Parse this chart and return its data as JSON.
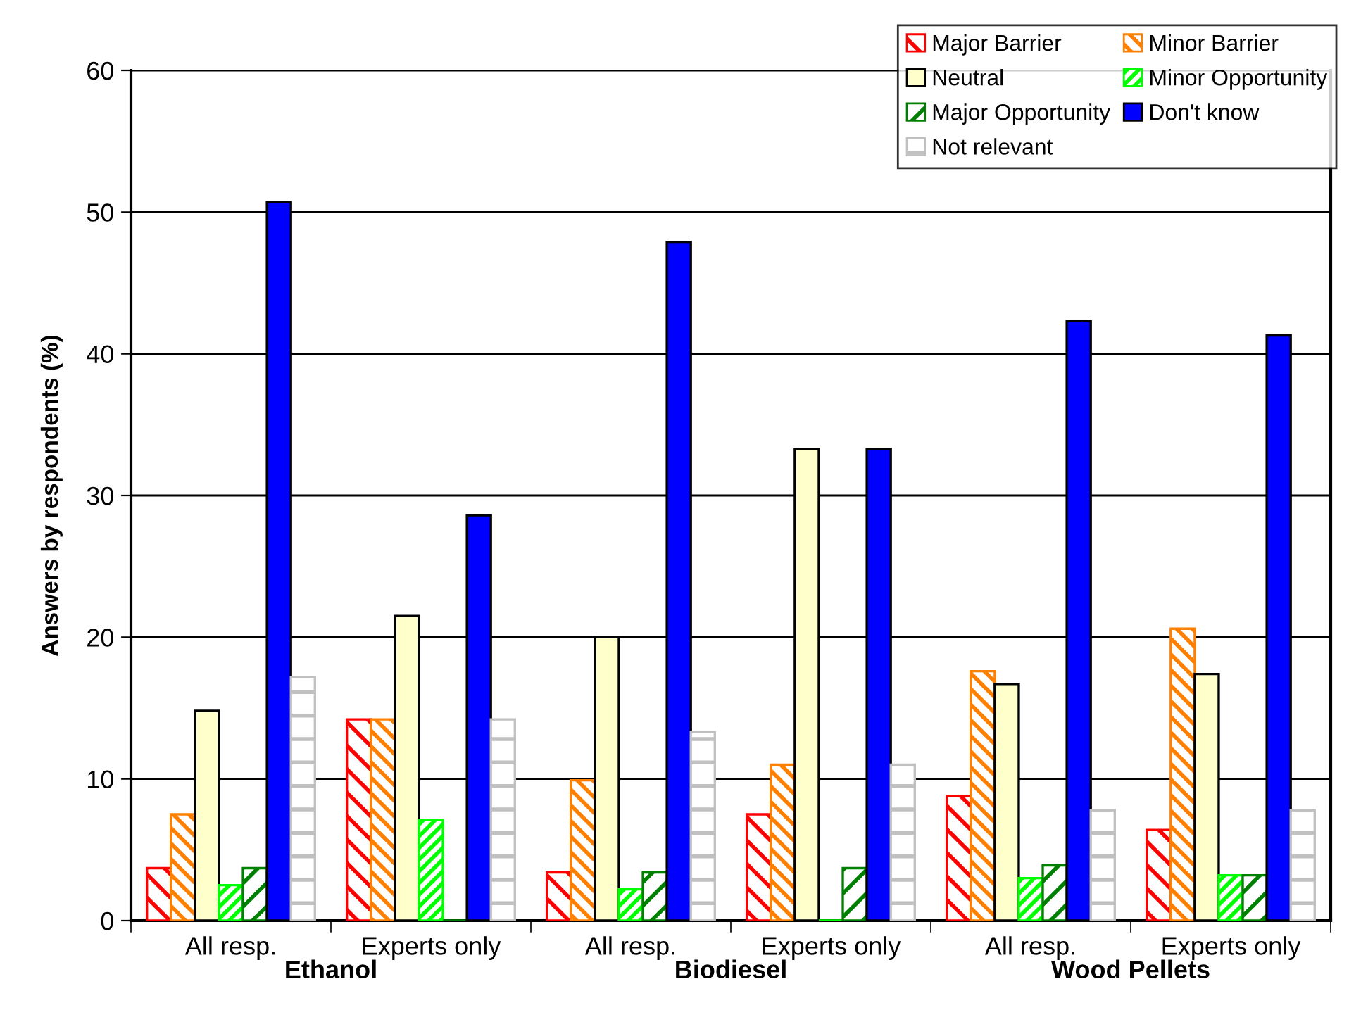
{
  "chart_data": {
    "type": "bar",
    "ylabel": "Answers by respondents (%)",
    "categories": [
      "All resp.",
      "Experts only",
      "All resp.",
      "Experts only",
      "All resp.",
      "Experts only"
    ],
    "annotations": [
      "Ethanol",
      "Biodiesel",
      "Wood Pellets"
    ],
    "series": [
      {
        "name": "Major Barrier",
        "color": "#ff0000",
        "values": [
          3.7,
          14.2,
          3.4,
          7.5,
          8.8,
          6.4
        ]
      },
      {
        "name": "Minor Barrier",
        "color": "#ff8000",
        "values": [
          7.5,
          14.2,
          9.9,
          11.0,
          17.6,
          20.6
        ]
      },
      {
        "name": "Neutral",
        "color": "#ffffcc",
        "values": [
          14.8,
          21.5,
          20.0,
          33.3,
          16.7,
          17.4
        ]
      },
      {
        "name": "Minor Opportunity",
        "color": "#00ff00",
        "values": [
          2.5,
          7.1,
          2.2,
          0,
          3.0,
          3.2
        ]
      },
      {
        "name": "Major Opportunity",
        "color": "#008000",
        "values": [
          3.7,
          0,
          3.4,
          3.7,
          3.9,
          3.2
        ]
      },
      {
        "name": "Don't know",
        "color": "#0000ff",
        "values": [
          50.7,
          28.6,
          47.9,
          33.3,
          42.3,
          41.3
        ]
      },
      {
        "name": "Not relevant",
        "color": "#c0c0c0",
        "values": [
          17.2,
          14.2,
          13.3,
          11.0,
          7.8,
          7.8
        ]
      }
    ],
    "ylim": [
      0,
      60
    ],
    "yticks": [
      0,
      10,
      20,
      30,
      40,
      50,
      60
    ],
    "grid": "y",
    "legend": "top right"
  }
}
